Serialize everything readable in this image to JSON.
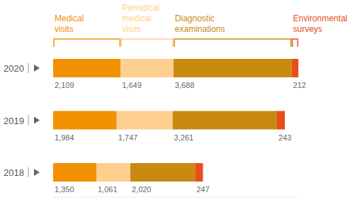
{
  "chart_data": {
    "type": "bar",
    "orientation": "horizontal",
    "stacked": true,
    "data_labels": true,
    "tick_labels": "y",
    "grid": false,
    "categories": [
      "2020",
      "2019",
      "2018"
    ],
    "xlim": [
      0,
      7700
    ],
    "series": [
      {
        "name": "Medical visits",
        "color": "#f29100",
        "values": [
          2109,
          1984,
          1350
        ],
        "value_labels": [
          "2,109",
          "1,984",
          "1,350"
        ]
      },
      {
        "name": "Periodical medical visits",
        "color": "#fdd08f",
        "values": [
          1649,
          1747,
          1061
        ],
        "value_labels": [
          "1,649",
          "1,747",
          "1,061"
        ]
      },
      {
        "name": "Diagnostic examinations",
        "color": "#c98a12",
        "values": [
          3688,
          3261,
          2020
        ],
        "value_labels": [
          "3,688",
          "3,261",
          "2,020"
        ]
      },
      {
        "name": "Environmental surveys",
        "color": "#e84e1b",
        "values": [
          212,
          243,
          247
        ],
        "value_labels": [
          "212",
          "243",
          "247"
        ]
      }
    ]
  }
}
